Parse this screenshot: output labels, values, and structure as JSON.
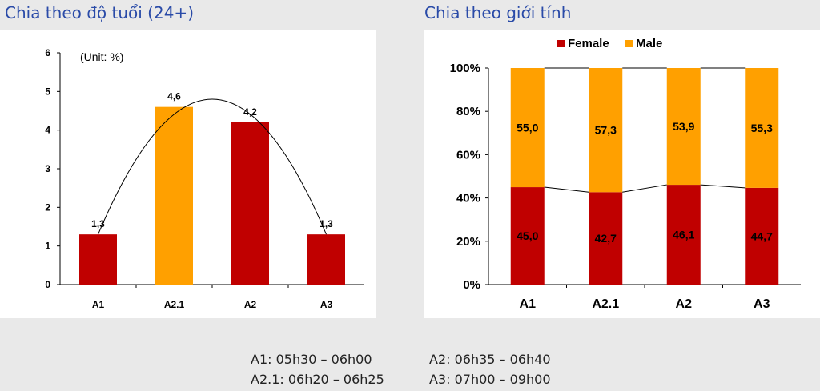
{
  "titles": {
    "age": "Chia theo độ tuổi (24+)",
    "gender": "Chia theo giới tính"
  },
  "colors": {
    "red": "#c00000",
    "orange": "#ffa000",
    "title_blue": "#2a4ba8"
  },
  "chart_data": [
    {
      "type": "bar",
      "title": "Chia theo độ tuổi (24+)",
      "unit_note": "(Unit: %)",
      "categories": [
        "A1",
        "A2.1",
        "A2",
        "A3"
      ],
      "values": [
        1.3,
        4.6,
        4.2,
        1.3
      ],
      "value_labels": [
        "1,3",
        "4,6",
        "4,2",
        "1,3"
      ],
      "bar_colors": [
        "#c00000",
        "#ffa000",
        "#c00000",
        "#c00000"
      ],
      "ylim": [
        0,
        6
      ],
      "yticks": [
        "0",
        "1",
        "2",
        "3",
        "4",
        "5",
        "6"
      ],
      "trendline": "curve",
      "grid": false
    },
    {
      "type": "bar",
      "stacked": true,
      "title": "Chia theo giới tính",
      "categories": [
        "A1",
        "A2.1",
        "A2",
        "A3"
      ],
      "series": [
        {
          "name": "Female",
          "color": "#c00000",
          "values": [
            45.0,
            42.7,
            46.1,
            44.7
          ],
          "labels": [
            "45,0",
            "42,7",
            "46,1",
            "44,7"
          ]
        },
        {
          "name": "Male",
          "color": "#ffa000",
          "values": [
            55.0,
            57.3,
            53.9,
            55.3
          ],
          "labels": [
            "55,0",
            "57,3",
            "53,9",
            "55,3"
          ]
        }
      ],
      "ylim": [
        0,
        100
      ],
      "yticks": [
        "0%",
        "20%",
        "40%",
        "60%",
        "80%",
        "100%"
      ],
      "legend": "top",
      "grid": false
    }
  ],
  "footnotes": {
    "a1": "A1: 05h30 – 06h00",
    "a2": "A2: 06h35 – 06h40",
    "a21": "A2.1: 06h20 – 06h25",
    "a3": "A3: 07h00 – 09h00"
  }
}
